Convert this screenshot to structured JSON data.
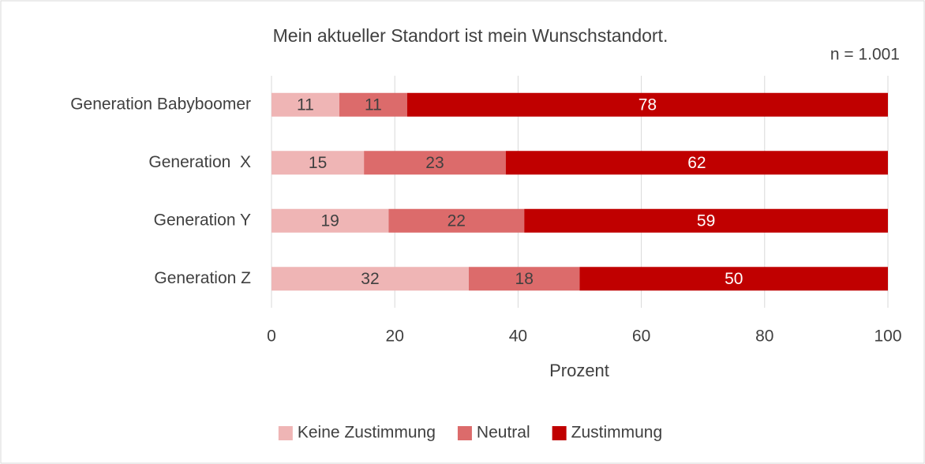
{
  "chart_data": {
    "type": "stacked_barh",
    "title": "Mein aktueller Standort ist mein Wunschstandort.",
    "annotation": "n = 1.001",
    "categories": [
      "Generation Babyboomer",
      "Generation  X",
      "Generation Y",
      "Generation Z"
    ],
    "series": [
      {
        "name": "Keine Zustimmung",
        "color": "#efb5b5",
        "label_color": "#404040",
        "values": [
          11,
          15,
          19,
          32
        ]
      },
      {
        "name": "Neutral",
        "color": "#dc6b6b",
        "label_color": "#404040",
        "values": [
          11,
          23,
          22,
          18
        ]
      },
      {
        "name": "Zustimmung",
        "color": "#c00000",
        "label_color": "#ffffff",
        "values": [
          78,
          62,
          59,
          50
        ]
      }
    ],
    "xlabel": "Prozent",
    "xlim": [
      0,
      100
    ],
    "xticks": [
      0,
      20,
      40,
      60,
      80,
      100
    ],
    "grid": true,
    "legend": "bottom"
  }
}
